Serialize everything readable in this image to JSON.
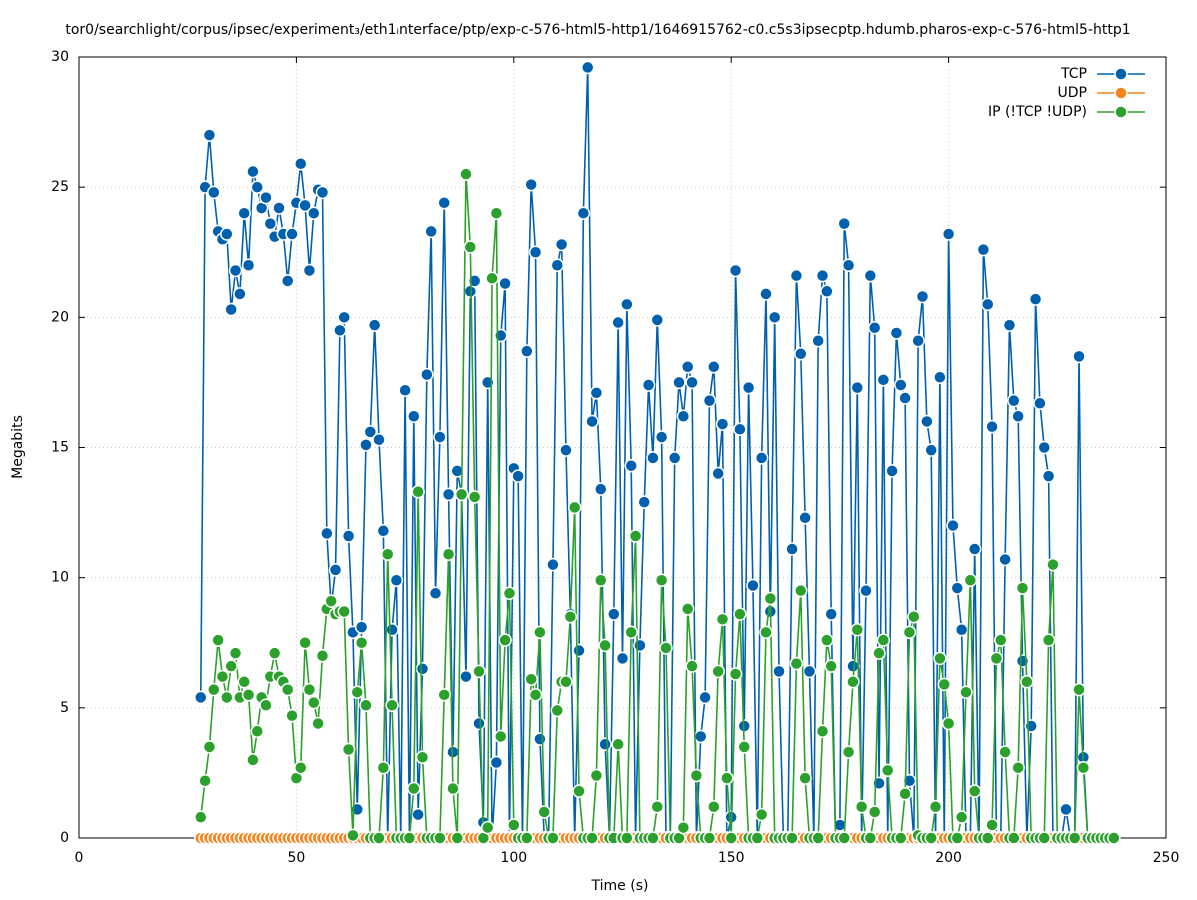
{
  "chart_data": {
    "type": "line",
    "title": "tor0/searchlight/corpus/ipsec/experiment₃/eth1ᵢnterface/ptp/exp-c-576-html5-http1/1646915762-c0.c5s3ipsecptp.hdumb.pharos-exp-c-576-html5-http1",
    "x_label": "Time (s)",
    "y_label": "Megabits",
    "xlim": [
      0,
      250
    ],
    "ylim": [
      0,
      30
    ],
    "xticks": [
      0,
      50,
      100,
      150,
      200,
      250
    ],
    "yticks": [
      0,
      5,
      10,
      15,
      20,
      25,
      30
    ],
    "grid": true,
    "legend": "top-right",
    "x": [
      28,
      29,
      30,
      31,
      32,
      33,
      34,
      35,
      36,
      37,
      38,
      39,
      40,
      41,
      42,
      43,
      44,
      45,
      46,
      47,
      48,
      49,
      50,
      51,
      52,
      53,
      54,
      55,
      56,
      57,
      58,
      59,
      60,
      61,
      62,
      63,
      64,
      65,
      66,
      67,
      68,
      69,
      70,
      71,
      72,
      73,
      74,
      75,
      76,
      77,
      78,
      79,
      80,
      81,
      82,
      83,
      84,
      85,
      86,
      87,
      88,
      89,
      90,
      91,
      92,
      93,
      94,
      95,
      96,
      97,
      98,
      99,
      100,
      101,
      102,
      103,
      104,
      105,
      106,
      107,
      108,
      109,
      110,
      111,
      112,
      113,
      114,
      115,
      116,
      117,
      118,
      119,
      120,
      121,
      122,
      123,
      124,
      125,
      126,
      127,
      128,
      129,
      130,
      131,
      132,
      133,
      134,
      135,
      136,
      137,
      138,
      139,
      140,
      141,
      142,
      143,
      144,
      145,
      146,
      147,
      148,
      149,
      150,
      151,
      152,
      153,
      154,
      155,
      156,
      157,
      158,
      159,
      160,
      161,
      162,
      163,
      164,
      165,
      166,
      167,
      168,
      169,
      170,
      171,
      172,
      173,
      174,
      175,
      176,
      177,
      178,
      179,
      180,
      181,
      182,
      183,
      184,
      185,
      186,
      187,
      188,
      189,
      190,
      191,
      192,
      193,
      194,
      195,
      196,
      197,
      198,
      199,
      200,
      201,
      202,
      203,
      204,
      205,
      206,
      207,
      208,
      209,
      210,
      211,
      212,
      213,
      214,
      215,
      216,
      217,
      218,
      219,
      220,
      221,
      222,
      223,
      224,
      225,
      226,
      227,
      228,
      229,
      230,
      231,
      232,
      233,
      234,
      235,
      236,
      237,
      238
    ],
    "series": [
      {
        "name": "TCP",
        "color": "#0060ad",
        "values": [
          5.4,
          25,
          27,
          24.8,
          23.3,
          23,
          23.2,
          20.3,
          21.8,
          20.9,
          24,
          22,
          25.6,
          25,
          24.2,
          24.6,
          23.6,
          23.1,
          24.2,
          23.2,
          21.4,
          23.2,
          24.4,
          25.9,
          24.3,
          21.8,
          24,
          24.9,
          24.8,
          11.7,
          8.9,
          10.3,
          19.5,
          20,
          11.6,
          7.9,
          1.1,
          8.1,
          15.1,
          15.6,
          19.7,
          15.3,
          11.8,
          0,
          8,
          9.9,
          0,
          17.2,
          0,
          16.2,
          0.9,
          6.5,
          17.8,
          23.3,
          9.4,
          15.4,
          24.4,
          13.2,
          3.3,
          14.1,
          13.2,
          6.2,
          21,
          21.4,
          4.4,
          0.6,
          17.5,
          0,
          2.9,
          19.3,
          21.3,
          0,
          14.2,
          13.9,
          0,
          18.7,
          25.1,
          22.5,
          3.8,
          0,
          0,
          10.5,
          22,
          22.8,
          14.9,
          8.6,
          0,
          7.2,
          24,
          29.6,
          16,
          17.1,
          13.4,
          3.6,
          0,
          8.6,
          19.8,
          6.9,
          20.5,
          14.3,
          0,
          7.4,
          12.9,
          17.4,
          14.6,
          19.9,
          15.4,
          0,
          0,
          14.6,
          17.5,
          16.2,
          18.1,
          17.5,
          0,
          3.9,
          5.4,
          16.8,
          18.1,
          14,
          15.9,
          0,
          0.8,
          21.8,
          15.7,
          4.3,
          17.3,
          9.7,
          0,
          14.6,
          20.9,
          8.7,
          20,
          6.4,
          0,
          0,
          11.1,
          21.6,
          18.6,
          12.3,
          6.4,
          0,
          19.1,
          21.6,
          21,
          8.6,
          0,
          0.5,
          23.6,
          22,
          6.6,
          17.3,
          0,
          9.5,
          21.6,
          19.6,
          2.1,
          17.6,
          0,
          14.1,
          19.4,
          17.4,
          16.9,
          2.2,
          0,
          19.1,
          20.8,
          16,
          14.9,
          0,
          17.7,
          0,
          23.2,
          12,
          9.6,
          8,
          0,
          0,
          11.1,
          0,
          22.6,
          20.5,
          15.8,
          0,
          0,
          10.7,
          19.7,
          16.8,
          16.2,
          6.8,
          0,
          4.3,
          20.7,
          16.7,
          15,
          13.9,
          0,
          0,
          0,
          1.1,
          0,
          0,
          18.5,
          3.1,
          0,
          0,
          0,
          0,
          0,
          0,
          0
        ]
      },
      {
        "name": "UDP",
        "color": "#f5841f",
        "values": [
          0,
          0,
          0,
          0,
          0,
          0,
          0,
          0,
          0,
          0,
          0,
          0,
          0,
          0,
          0,
          0,
          0,
          0,
          0,
          0,
          0,
          0,
          0,
          0,
          0,
          0,
          0,
          0,
          0,
          0,
          0,
          0,
          0,
          0,
          0,
          0,
          0,
          0,
          0,
          0,
          0,
          0,
          0,
          0,
          0,
          0,
          0,
          0,
          0,
          0,
          0,
          0,
          0,
          0,
          0,
          0,
          0,
          0,
          0,
          0,
          0,
          0,
          0,
          0,
          0,
          0,
          0,
          0,
          0,
          0,
          0,
          0,
          0,
          0,
          0,
          0,
          0,
          0,
          0,
          0,
          0,
          0,
          0,
          0,
          0,
          0,
          0,
          0,
          0,
          0,
          0,
          0,
          0,
          0,
          0,
          0,
          0,
          0,
          0,
          0,
          0,
          0,
          0,
          0,
          0,
          0,
          0,
          0,
          0,
          0,
          0,
          0,
          0,
          0,
          0,
          0,
          0,
          0,
          0,
          0,
          0,
          0,
          0,
          0,
          0,
          0,
          0,
          0,
          0,
          0,
          0,
          0,
          0,
          0,
          0,
          0,
          0,
          0,
          0,
          0,
          0,
          0,
          0,
          0,
          0,
          0,
          0,
          0,
          0,
          0,
          0,
          0,
          0,
          0,
          0,
          0,
          0,
          0,
          0,
          0,
          0,
          0,
          0,
          0,
          0,
          0,
          0,
          0,
          0,
          0,
          0,
          0,
          0,
          0,
          0,
          0,
          0,
          0,
          0,
          0,
          0,
          0,
          0,
          0,
          0,
          0,
          0,
          0,
          0,
          0,
          0,
          0,
          0,
          0,
          0,
          0,
          0,
          0,
          0,
          0,
          0,
          0,
          0,
          0,
          0,
          0,
          0,
          0,
          0,
          0,
          0
        ]
      },
      {
        "name": "IP (!TCP  !UDP)",
        "color": "#2ca02c",
        "values": [
          0.8,
          2.2,
          3.5,
          5.7,
          7.6,
          6.2,
          5.4,
          6.6,
          7.1,
          5.4,
          6,
          5.5,
          3,
          4.1,
          5.4,
          5.1,
          6.2,
          7.1,
          6.2,
          6,
          5.7,
          4.7,
          2.3,
          2.7,
          7.5,
          5.7,
          5.2,
          4.4,
          7,
          8.8,
          9.1,
          8.6,
          8.7,
          8.7,
          3.4,
          0.1,
          5.6,
          7.5,
          5.1,
          0,
          0,
          0,
          2.7,
          10.9,
          5.1,
          0,
          0,
          0,
          0,
          1.9,
          13.3,
          3.1,
          0,
          0,
          0,
          0,
          5.5,
          10.9,
          1.9,
          0,
          13.2,
          25.5,
          22.7,
          13.1,
          6.4,
          0,
          0.4,
          21.5,
          24,
          3.9,
          7.6,
          9.4,
          0.5,
          0,
          0,
          0,
          6.1,
          5.5,
          7.9,
          1,
          0,
          0,
          4.9,
          6,
          6,
          8.5,
          12.7,
          1.8,
          0,
          0,
          0,
          2.4,
          9.9,
          7.4,
          0,
          0,
          3.6,
          0,
          0,
          7.9,
          11.6,
          0,
          0,
          0,
          0,
          1.2,
          9.9,
          7.3,
          0,
          0,
          0,
          0.4,
          8.8,
          6.6,
          2.4,
          0,
          0,
          0,
          1.2,
          6.4,
          8.4,
          2.3,
          0,
          6.3,
          8.6,
          3.5,
          0,
          0,
          0,
          0.9,
          7.9,
          9.2,
          0,
          0,
          0,
          0,
          0,
          6.7,
          9.5,
          2.3,
          0,
          0,
          0,
          4.1,
          7.6,
          6.6,
          0,
          0,
          0,
          3.3,
          6,
          8,
          1.2,
          0,
          0,
          1,
          7.1,
          7.6,
          2.6,
          0,
          0,
          0,
          1.7,
          7.9,
          8.5,
          0.1,
          0,
          0,
          0,
          1.2,
          6.9,
          5.9,
          4.4,
          0,
          0,
          0.8,
          5.6,
          9.9,
          1.8,
          0,
          0,
          0,
          0.5,
          6.9,
          7.6,
          3.3,
          0,
          0,
          2.7,
          9.6,
          6,
          0,
          0,
          0,
          0,
          7.6,
          10.5,
          0,
          0,
          0,
          0,
          0,
          5.7,
          2.7,
          0,
          0,
          0,
          0,
          0,
          0,
          0
        ]
      }
    ]
  }
}
